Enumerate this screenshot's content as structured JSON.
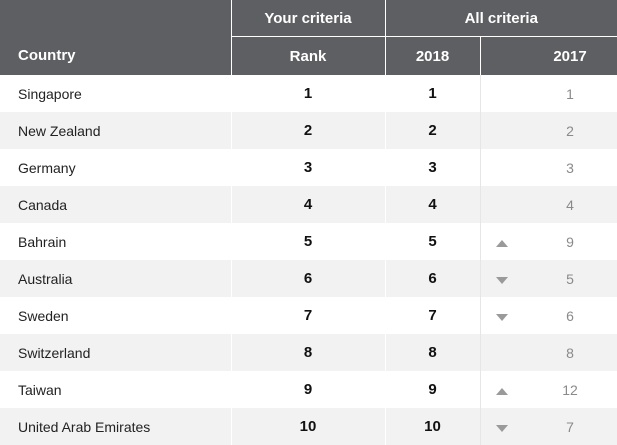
{
  "header": {
    "your_criteria": "Your criteria",
    "all_criteria": "All criteria",
    "country": "Country",
    "rank": "Rank",
    "year_2018": "2018",
    "year_2017": "2017"
  },
  "rows": [
    {
      "country": "Singapore",
      "rank": "1",
      "y2018": "1",
      "trend": "none",
      "y2017": "1"
    },
    {
      "country": "New Zealand",
      "rank": "2",
      "y2018": "2",
      "trend": "none",
      "y2017": "2"
    },
    {
      "country": "Germany",
      "rank": "3",
      "y2018": "3",
      "trend": "none",
      "y2017": "3"
    },
    {
      "country": "Canada",
      "rank": "4",
      "y2018": "4",
      "trend": "none",
      "y2017": "4"
    },
    {
      "country": "Bahrain",
      "rank": "5",
      "y2018": "5",
      "trend": "up",
      "y2017": "9"
    },
    {
      "country": "Australia",
      "rank": "6",
      "y2018": "6",
      "trend": "down",
      "y2017": "5"
    },
    {
      "country": "Sweden",
      "rank": "7",
      "y2018": "7",
      "trend": "down",
      "y2017": "6"
    },
    {
      "country": "Switzerland",
      "rank": "8",
      "y2018": "8",
      "trend": "none",
      "y2017": "8"
    },
    {
      "country": "Taiwan",
      "rank": "9",
      "y2018": "9",
      "trend": "up",
      "y2017": "12"
    },
    {
      "country": "United Arab Emirates",
      "rank": "10",
      "y2018": "10",
      "trend": "down",
      "y2017": "7"
    }
  ],
  "colors": {
    "header_bg": "#5e5f62",
    "alt_row_bg": "#f2f2f2",
    "arrow": "#9a9a9a"
  }
}
